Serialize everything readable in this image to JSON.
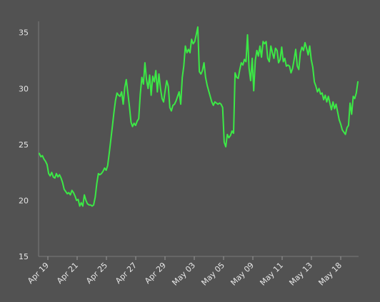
{
  "chart_data": {
    "type": "line",
    "title": "",
    "xlabel": "",
    "ylabel": "",
    "ylim": [
      15,
      36
    ],
    "y_ticks": [
      15,
      20,
      25,
      30,
      35
    ],
    "x_tick_labels": [
      "Apr 19",
      "Apr 21",
      "Apr 25",
      "Apr 27",
      "Apr 29",
      "May 03",
      "May 05",
      "May 09",
      "May 11",
      "May 13",
      "May 18"
    ],
    "grid": false,
    "legend": "none",
    "line_color": "#3ce846",
    "series": [
      {
        "values": [
          24.2,
          23.9,
          24.0,
          23.7,
          23.5,
          23.2,
          22.4,
          22.2,
          22.5,
          22.1,
          22.0,
          22.4,
          22.1,
          22.3,
          22.0,
          21.6,
          21.0,
          20.8,
          20.6,
          20.7,
          20.5,
          20.9,
          20.7,
          20.4,
          20.0,
          20.1,
          19.5,
          19.8,
          19.5,
          20.5,
          20.0,
          19.7,
          19.6,
          19.6,
          19.5,
          19.6,
          20.3,
          21.5,
          22.4,
          22.3,
          22.4,
          22.6,
          22.9,
          22.7,
          23.1,
          24.2,
          25.4,
          26.6,
          27.8,
          28.9,
          29.6,
          29.4,
          29.3,
          29.7,
          28.6,
          30.1,
          30.8,
          29.6,
          28.4,
          27.0,
          26.6,
          26.9,
          26.7,
          27.1,
          27.3,
          29.5,
          31.0,
          30.4,
          32.3,
          30.8,
          30.0,
          31.2,
          29.4,
          31.1,
          30.6,
          31.6,
          29.7,
          31.3,
          30.0,
          29.1,
          28.8,
          29.8,
          30.7,
          30.2,
          28.3,
          28.0,
          28.5,
          28.6,
          28.9,
          29.3,
          29.7,
          28.6,
          31.0,
          32.0,
          33.8,
          33.2,
          33.5,
          33.2,
          34.4,
          34.0,
          34.2,
          34.8,
          35.5,
          31.5,
          31.3,
          31.6,
          32.3,
          31.0,
          30.3,
          29.8,
          29.3,
          28.8,
          28.5,
          28.8,
          28.7,
          28.6,
          28.7,
          28.6,
          28.3,
          25.2,
          24.8,
          25.9,
          25.6,
          25.8,
          26.2,
          26.0,
          31.4,
          31.0,
          30.9,
          31.7,
          32.3,
          32.1,
          32.6,
          32.4,
          34.8,
          31.8,
          30.7,
          32.7,
          29.8,
          32.5,
          33.4,
          32.9,
          33.8,
          32.8,
          34.2,
          34.0,
          34.2,
          32.7,
          32.4,
          33.8,
          33.2,
          32.7,
          33.6,
          33.4,
          32.3,
          32.6,
          33.7,
          32.4,
          32.7,
          32.0,
          32.1,
          32.0,
          31.4,
          31.8,
          32.6,
          33.5,
          32.0,
          31.7,
          33.2,
          33.7,
          33.4,
          34.1,
          33.6,
          33.0,
          33.8,
          32.6,
          31.9,
          30.6,
          30.2,
          29.7,
          30.0,
          29.5,
          29.6,
          29.0,
          29.4,
          28.8,
          29.3,
          28.7,
          28.1,
          28.8,
          28.2,
          28.6,
          27.9,
          27.2,
          26.8,
          26.3,
          26.1,
          25.9,
          26.5,
          26.7,
          28.7,
          27.7,
          29.3,
          29.1,
          29.6,
          30.6
        ]
      }
    ]
  }
}
